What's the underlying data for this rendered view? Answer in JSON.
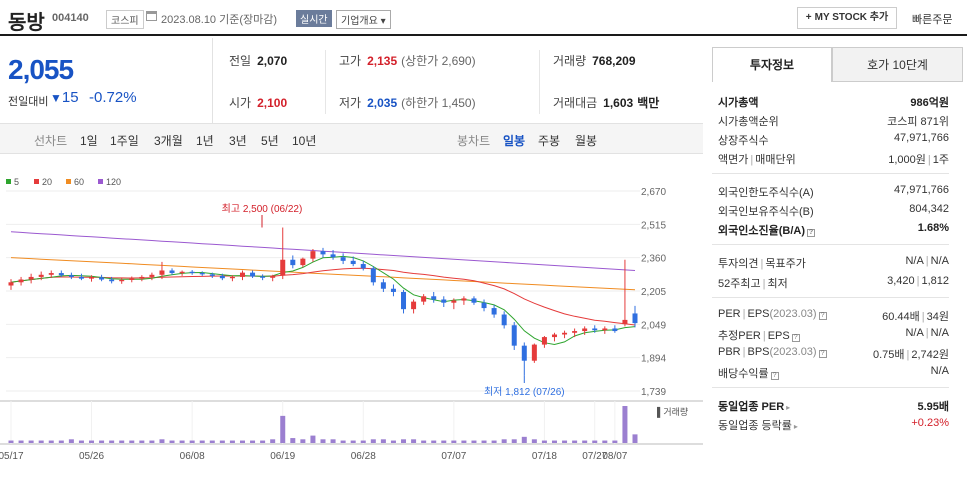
{
  "header": {
    "name": "동방",
    "code": "004140",
    "market": "코스피",
    "date": "2023.08.10 기준(장마감)",
    "live": "실시간",
    "overview": "기업개요 ▾",
    "mystock": "MY STOCK 추가",
    "quick_order": "빠른주문"
  },
  "price": {
    "current": "2,055",
    "change_label": "전일대비",
    "change": "15",
    "change_pct": "-0.72%"
  },
  "stats": {
    "prev_label": "전일",
    "prev": "2,070",
    "high_label": "고가",
    "high": "2,135",
    "upper_limit": "(상한가 2,690)",
    "volume_label": "거래량",
    "volume": "768,209",
    "open_label": "시가",
    "open": "2,100",
    "low_label": "저가",
    "low": "2,035",
    "lower_limit": "(하한가 1,450)",
    "amount_label": "거래대금",
    "amount": "1,603",
    "amount_unit": "백만"
  },
  "period": {
    "line_chart": "선차트",
    "ranges": [
      "1일",
      "1주일",
      "3개월",
      "1년",
      "3년",
      "5년",
      "10년"
    ],
    "candle_chart": "봉차트",
    "candles": [
      "일봉",
      "주봉",
      "월봉"
    ],
    "active_candle": "일봉"
  },
  "legend": [
    {
      "label": "5",
      "color": "#2ea52e"
    },
    {
      "label": "20",
      "color": "#e53b3b"
    },
    {
      "label": "60",
      "color": "#f08c22"
    },
    {
      "label": "120",
      "color": "#9b59d0"
    }
  ],
  "sidebar": {
    "tab_invest": "투자정보",
    "tab_orderbook": "호가 10단계",
    "market_cap_label": "시가총액",
    "market_cap": "986억원",
    "rank_label": "시가총액순위",
    "rank": "코스피 871위",
    "shares_label": "상장주식수",
    "shares": "47,971,766",
    "par_label": "액면가",
    "lot_label": "매매단위",
    "par": "1,000원",
    "lot": "1주",
    "foreign_limit_label": "외국인한도주식수(A)",
    "foreign_limit": "47,971,766",
    "foreign_hold_label": "외국인보유주식수(B)",
    "foreign_hold": "804,342",
    "foreign_ratio_label": "외국인소진율(B/A)",
    "foreign_ratio": "1.68%",
    "opinion_label": "투자의견",
    "target_label": "목표주가",
    "opinion": "N/A",
    "target": "N/A",
    "w52_high_label": "52주최고",
    "w52_low_label": "최저",
    "w52_high": "3,420",
    "w52_low": "1,812",
    "per_label": "PER",
    "eps_label": "EPS",
    "per_period": "(2023.03)",
    "per": "60.44배",
    "eps": "34원",
    "est_per_label": "추정PER",
    "est_eps_label": "EPS",
    "est_per": "N/A",
    "est_eps": "N/A",
    "pbr_label": "PBR",
    "bps_label": "BPS",
    "pbr_period": "(2023.03)",
    "pbr": "0.75배",
    "bps": "2,742원",
    "dividend_label": "배당수익률",
    "dividend": "N/A",
    "sector_per_label": "동일업종 PER",
    "sector_per": "5.95배",
    "sector_change_label": "동일업종 등락률",
    "sector_change": "+0.23%"
  },
  "chart_data": {
    "type": "candlestick",
    "y_ticks": [
      "2,670",
      "2,515",
      "2,360",
      "2,205",
      "2,049",
      "1,894",
      "1,739"
    ],
    "ylim": [
      1739,
      2670
    ],
    "x_ticks": [
      "05/17",
      "05/26",
      "06/08",
      "06/19",
      "06/28",
      "07/07",
      "07/18",
      "07/27",
      "08/07"
    ],
    "annotation_high": "최고 2,500 (06/22)",
    "annotation_low": "최저 1,812 (07/26)",
    "volume_label": "거래량",
    "candles": [
      [
        2230,
        2260,
        2210,
        2245
      ],
      [
        2245,
        2270,
        2230,
        2258
      ],
      [
        2258,
        2285,
        2240,
        2270
      ],
      [
        2270,
        2295,
        2255,
        2280
      ],
      [
        2280,
        2300,
        2265,
        2288
      ],
      [
        2288,
        2300,
        2270,
        2278
      ],
      [
        2278,
        2290,
        2260,
        2270
      ],
      [
        2270,
        2285,
        2255,
        2262
      ],
      [
        2262,
        2278,
        2248,
        2268
      ],
      [
        2268,
        2280,
        2250,
        2258
      ],
      [
        2258,
        2270,
        2240,
        2250
      ],
      [
        2250,
        2265,
        2238,
        2256
      ],
      [
        2256,
        2272,
        2245,
        2262
      ],
      [
        2262,
        2278,
        2250,
        2270
      ],
      [
        2270,
        2290,
        2255,
        2280
      ],
      [
        2280,
        2340,
        2260,
        2300
      ],
      [
        2300,
        2310,
        2280,
        2288
      ],
      [
        2288,
        2300,
        2275,
        2294
      ],
      [
        2294,
        2302,
        2280,
        2288
      ],
      [
        2288,
        2296,
        2275,
        2282
      ],
      [
        2282,
        2290,
        2265,
        2275
      ],
      [
        2275,
        2285,
        2255,
        2264
      ],
      [
        2264,
        2278,
        2250,
        2270
      ],
      [
        2270,
        2300,
        2255,
        2290
      ],
      [
        2290,
        2300,
        2265,
        2272
      ],
      [
        2272,
        2282,
        2255,
        2266
      ],
      [
        2266,
        2280,
        2250,
        2276
      ],
      [
        2276,
        2500,
        2260,
        2350
      ],
      [
        2350,
        2370,
        2310,
        2325
      ],
      [
        2325,
        2360,
        2315,
        2355
      ],
      [
        2355,
        2400,
        2340,
        2390
      ],
      [
        2390,
        2405,
        2360,
        2375
      ],
      [
        2375,
        2395,
        2350,
        2362
      ],
      [
        2362,
        2380,
        2330,
        2345
      ],
      [
        2345,
        2365,
        2320,
        2330
      ],
      [
        2330,
        2345,
        2300,
        2310
      ],
      [
        2310,
        2320,
        2230,
        2245
      ],
      [
        2245,
        2260,
        2200,
        2215
      ],
      [
        2215,
        2235,
        2180,
        2200
      ],
      [
        2200,
        2210,
        2100,
        2120
      ],
      [
        2120,
        2165,
        2100,
        2155
      ],
      [
        2155,
        2190,
        2140,
        2180
      ],
      [
        2180,
        2200,
        2150,
        2165
      ],
      [
        2165,
        2180,
        2130,
        2150
      ],
      [
        2150,
        2170,
        2120,
        2160
      ],
      [
        2160,
        2180,
        2140,
        2170
      ],
      [
        2170,
        2180,
        2140,
        2150
      ],
      [
        2150,
        2165,
        2110,
        2125
      ],
      [
        2125,
        2140,
        2080,
        2095
      ],
      [
        2095,
        2110,
        2030,
        2045
      ],
      [
        2045,
        2060,
        1930,
        1950
      ],
      [
        1950,
        1965,
        1812,
        1880
      ],
      [
        1880,
        1960,
        1870,
        1955
      ],
      [
        1955,
        1995,
        1940,
        1990
      ],
      [
        1990,
        2010,
        1970,
        2002
      ],
      [
        2002,
        2020,
        1985,
        2010
      ],
      [
        2010,
        2030,
        1990,
        2018
      ],
      [
        2018,
        2040,
        2000,
        2030
      ],
      [
        2030,
        2045,
        2010,
        2022
      ],
      [
        2022,
        2040,
        2005,
        2030
      ],
      [
        2030,
        2045,
        2010,
        2018
      ],
      [
        2050,
        2350,
        2040,
        2070
      ],
      [
        2100,
        2135,
        2035,
        2055
      ]
    ],
    "volume": [
      2,
      2,
      2,
      2,
      2,
      2,
      3,
      2,
      2,
      2,
      2,
      2,
      2,
      2,
      2,
      3,
      2,
      2,
      2,
      2,
      2,
      2,
      2,
      2,
      2,
      2,
      3,
      22,
      4,
      3,
      6,
      3,
      3,
      2,
      2,
      2,
      3,
      3,
      2,
      3,
      3,
      2,
      2,
      2,
      2,
      2,
      2,
      2,
      2,
      3,
      3,
      5,
      3,
      2,
      2,
      2,
      2,
      2,
      2,
      2,
      2,
      30,
      7
    ]
  }
}
